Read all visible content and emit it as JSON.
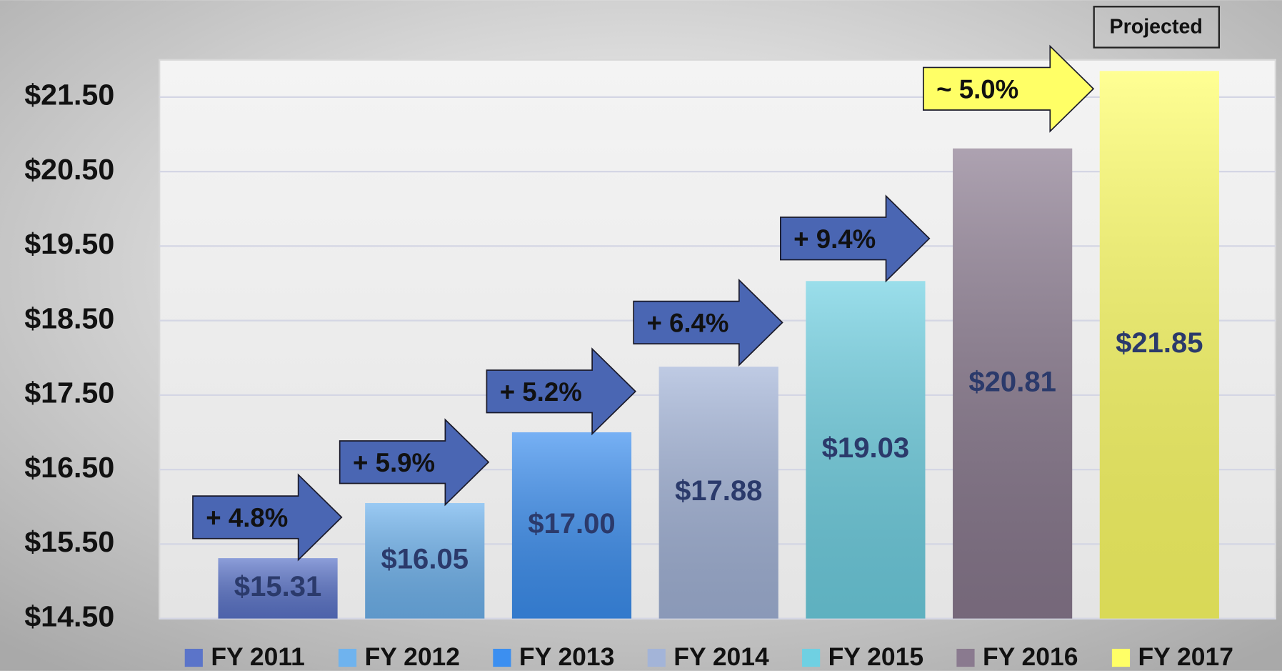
{
  "chart_data": {
    "type": "bar",
    "categories": [
      "FY 2011",
      "FY 2012",
      "FY 2013",
      "FY 2014",
      "FY 2015",
      "FY 2016",
      "FY 2017"
    ],
    "values": [
      15.31,
      16.05,
      17.0,
      17.88,
      19.03,
      20.81,
      21.85
    ],
    "value_labels": [
      "$15.31",
      "$16.05",
      "$17.00",
      "$17.88",
      "$19.03",
      "$20.81",
      "$21.85"
    ],
    "colors": [
      "#5b74c9",
      "#6fb3ee",
      "#3c8ff0",
      "#a3b4d8",
      "#6fd0e2",
      "#8a7a8f",
      "#ffff66"
    ],
    "ylim": [
      14.5,
      22.0
    ],
    "yticks": [
      {
        "value": 14.5,
        "label": "$14.50"
      },
      {
        "value": 15.5,
        "label": "$15.50"
      },
      {
        "value": 16.5,
        "label": "$16.50"
      },
      {
        "value": 17.5,
        "label": "$17.50"
      },
      {
        "value": 18.5,
        "label": "$18.50"
      },
      {
        "value": 19.5,
        "label": "$19.50"
      },
      {
        "value": 20.5,
        "label": "$20.50"
      },
      {
        "value": 21.5,
        "label": "$21.50"
      }
    ],
    "grid": true,
    "legend": "bottom",
    "annotations": [
      {
        "text": "+ 4.8%",
        "color": "#4a66b3"
      },
      {
        "text": "+ 5.9%",
        "color": "#4a66b3"
      },
      {
        "text": "+ 5.2%",
        "color": "#4a66b3"
      },
      {
        "text": "+ 6.4%",
        "color": "#4a66b3"
      },
      {
        "text": "+ 9.4%",
        "color": "#4a66b3"
      },
      {
        "text": "~ 5.0%",
        "color": "#ffff66"
      }
    ],
    "projected_label": "Projected"
  }
}
